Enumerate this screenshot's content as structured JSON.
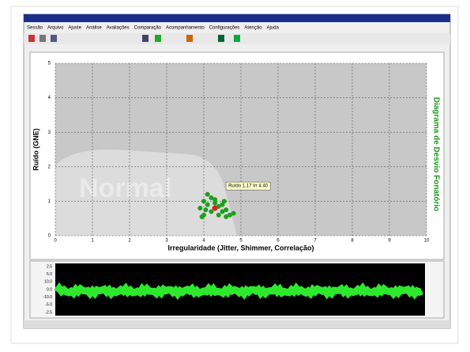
{
  "window": {
    "menu": [
      "Sessão",
      "Arquivo",
      "Ajuste",
      "Análise",
      "Avaliações",
      "Comparação",
      "Acompanhamento",
      "Configurações",
      "Atenção",
      "Ajuda"
    ]
  },
  "chart_data": {
    "type": "scatter",
    "ylabel": "Ruído (GNE)",
    "xlabel": "Irregularidade (Jitter, Shimmer, Correlação)",
    "side_label": "Diagrama de Desvio Fonatório",
    "watermark": "Normal",
    "annotation": "Ruído 1.17 Irr 4.40",
    "xlim": [
      0,
      10
    ],
    "ylim": [
      0,
      5
    ],
    "xticks": [
      0,
      1,
      2,
      3,
      4,
      5,
      6,
      7,
      8,
      9,
      10
    ],
    "yticks": [
      0,
      1,
      2,
      3,
      4,
      5
    ],
    "grid": true,
    "color": "#1aa01a",
    "x": [
      4.0,
      4.2,
      4.1,
      3.9,
      4.3,
      4.4,
      4.5,
      4.6,
      4.7,
      4.8,
      4.2,
      4.0,
      4.4,
      4.1,
      4.5,
      3.95,
      4.6,
      4.3,
      4.05,
      4.55
    ],
    "y": [
      1.0,
      1.1,
      0.9,
      0.8,
      0.95,
      0.85,
      0.7,
      0.75,
      0.6,
      0.65,
      0.7,
      0.6,
      0.6,
      1.2,
      0.9,
      0.55,
      0.55,
      1.05,
      0.75,
      1.0
    ],
    "highlight": {
      "x": 4.3,
      "y": 0.8,
      "color": "#e02020"
    }
  },
  "waveform": {
    "labels": [
      "2.5",
      "5.0",
      "10.0",
      "0.0",
      "-10.0",
      "-5.0",
      "-2.5"
    ]
  }
}
